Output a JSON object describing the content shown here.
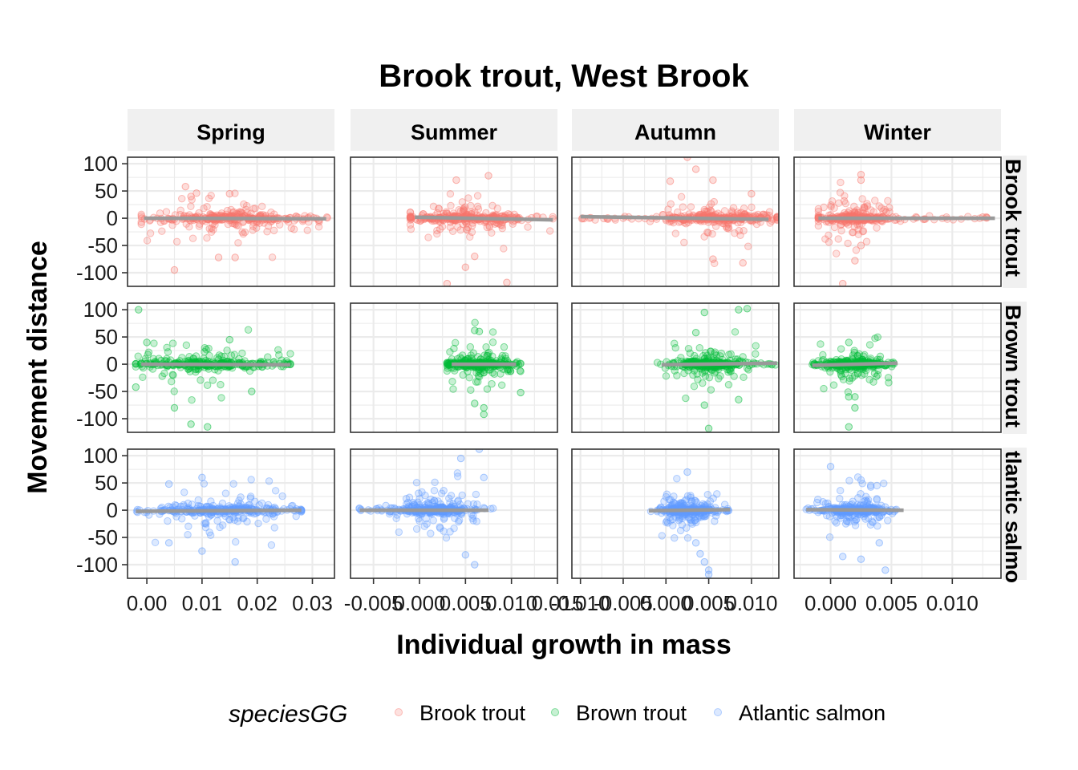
{
  "chart_data": {
    "type": "scatter",
    "title": "Brook trout, West Brook",
    "xlabel": "Individual growth in mass",
    "ylabel": "Movement distance",
    "legend": {
      "title": "speciesGG",
      "position": "bottom",
      "entries": [
        {
          "name": "Brook trout",
          "color": "#F8766D"
        },
        {
          "name": "Brown trout",
          "color": "#00BA38"
        },
        {
          "name": "Atlantic salmon",
          "color": "#619CFF"
        }
      ]
    },
    "facet_columns": [
      "Spring",
      "Summer",
      "Autumn",
      "Winter"
    ],
    "facet_rows": [
      "Brook trout",
      "Brown trout",
      "Atlantic salmon"
    ],
    "facet_row_strip_labels": [
      "Brook trout",
      "Brown trout",
      "tlantic salmo"
    ],
    "ylim": [
      -125,
      112
    ],
    "y_ticks": [
      100,
      50,
      0,
      -50,
      -100
    ],
    "y_tick_labels": [
      "100",
      "50",
      "0",
      "-50",
      "-100"
    ],
    "grid": true,
    "panels_columns": [
      {
        "season": "Spring",
        "xlim": [
          -0.0035,
          0.034
        ],
        "x_ticks": [
          0.0,
          0.01,
          0.02,
          0.03
        ],
        "x_tick_labels": [
          "0.00",
          "0.01",
          "0.02",
          "0.03"
        ],
        "trend_lines": [
          {
            "x": [
              -0.0005,
              0.0325
            ],
            "y": [
              0,
              -1
            ]
          },
          {
            "x": [
              -0.001,
              0.026
            ],
            "y": [
              0,
              -1
            ]
          },
          {
            "x": [
              -0.002,
              0.028
            ],
            "y": [
              -2,
              0
            ]
          }
        ],
        "x_range": [
          [
            -0.001,
            0.033
          ],
          [
            -0.002,
            0.026
          ],
          [
            -0.002,
            0.028
          ]
        ],
        "x_center": [
          0.014,
          0.011,
          0.014
        ],
        "x_spread": [
          0.0065,
          0.0065,
          0.0065
        ]
      },
      {
        "season": "Summer",
        "xlim": [
          -0.0075,
          0.015
        ],
        "x_ticks": [
          -0.005,
          0.0,
          0.005,
          0.01,
          0.015
        ],
        "x_tick_labels": [
          "-0.005",
          "0.000",
          "0.005",
          "0.010",
          "0.015"
        ],
        "trend_lines": [
          {
            "x": [
              -0.0005,
              0.0145
            ],
            "y": [
              2,
              -3
            ]
          },
          {
            "x": [
              0.0035,
              0.0105
            ],
            "y": [
              0,
              0
            ]
          },
          {
            "x": [
              -0.0065,
              0.0075
            ],
            "y": [
              0,
              0
            ]
          }
        ],
        "x_range": [
          [
            -0.001,
            0.0145
          ],
          [
            0.003,
            0.011
          ],
          [
            -0.007,
            0.008
          ]
        ],
        "x_center": [
          0.0045,
          0.0065,
          0.0015
        ],
        "x_spread": [
          0.0035,
          0.0018,
          0.0022
        ]
      },
      {
        "season": "Autumn",
        "xlim": [
          -0.011,
          0.0132
        ],
        "x_ticks": [
          -0.01,
          -0.005,
          0.0,
          0.005,
          0.01
        ],
        "x_tick_labels": [
          "-0.010",
          "-0.005",
          "0.000",
          "0.005",
          "0.010"
        ],
        "trend_lines": [
          {
            "x": [
              -0.01,
              0.012
            ],
            "y": [
              3,
              -2
            ]
          },
          {
            "x": [
              -0.0005,
              0.013
            ],
            "y": [
              -1,
              2
            ]
          },
          {
            "x": [
              -0.002,
              0.0075
            ],
            "y": [
              -1,
              1
            ]
          }
        ],
        "x_range": [
          [
            -0.01,
            0.013
          ],
          [
            -0.001,
            0.013
          ],
          [
            -0.002,
            0.0075
          ]
        ],
        "x_center": [
          0.006,
          0.005,
          0.0025
        ],
        "x_spread": [
          0.0035,
          0.0022,
          0.0015
        ]
      },
      {
        "season": "Winter",
        "xlim": [
          -0.003,
          0.014
        ],
        "x_ticks": [
          0.0,
          0.005,
          0.01
        ],
        "x_tick_labels": [
          "0.000",
          "0.005",
          "0.010"
        ],
        "trend_lines": [
          {
            "x": [
              -0.001,
              0.0135
            ],
            "y": [
              0,
              0
            ]
          },
          {
            "x": [
              -0.0015,
              0.0055
            ],
            "y": [
              -2,
              2
            ]
          },
          {
            "x": [
              -0.002,
              0.006
            ],
            "y": [
              1,
              0
            ]
          }
        ],
        "x_range": [
          [
            -0.001,
            0.0135
          ],
          [
            -0.0015,
            0.0055
          ],
          [
            -0.002,
            0.006
          ]
        ],
        "x_center": [
          0.002,
          0.002,
          0.002
        ],
        "x_spread": [
          0.0015,
          0.0013,
          0.0013
        ]
      }
    ],
    "outliers": [
      {
        "row": 0,
        "col": 0,
        "points": [
          [
            0.007,
            58
          ],
          [
            0.008,
            40
          ],
          [
            0.013,
            -72
          ],
          [
            0.005,
            -95
          ],
          [
            0.016,
            -72
          ],
          [
            0.009,
            46
          ],
          [
            0.015,
            45
          ]
        ]
      },
      {
        "row": 0,
        "col": 1,
        "points": [
          [
            0.004,
            70
          ],
          [
            0.0075,
            78
          ],
          [
            0.003,
            -120
          ],
          [
            0.0095,
            -118
          ],
          [
            0.006,
            -70
          ],
          [
            0.005,
            -90
          ]
        ]
      },
      {
        "row": 0,
        "col": 2,
        "points": [
          [
            0.0025,
            112
          ],
          [
            0.0035,
            90
          ],
          [
            0.0005,
            68
          ],
          [
            0.0055,
            70
          ],
          [
            0.0055,
            -75
          ],
          [
            0.009,
            -82
          ],
          [
            0.01,
            45
          ]
        ]
      },
      {
        "row": 0,
        "col": 3,
        "points": [
          [
            0.0025,
            80
          ],
          [
            0.0025,
            70
          ],
          [
            0.001,
            -120
          ],
          [
            0.002,
            -78
          ],
          [
            0.0025,
            -50
          ],
          [
            0.0125,
            2
          ]
        ]
      },
      {
        "row": 1,
        "col": 0,
        "points": [
          [
            -0.0015,
            100
          ],
          [
            0.0,
            40
          ],
          [
            -0.002,
            -42
          ],
          [
            0.008,
            -110
          ],
          [
            0.011,
            -115
          ],
          [
            0.015,
            45
          ],
          [
            0.019,
            -50
          ],
          [
            0.005,
            -80
          ]
        ]
      },
      {
        "row": 1,
        "col": 1,
        "points": [
          [
            0.0065,
            60
          ],
          [
            0.007,
            -80
          ],
          [
            0.007,
            -92
          ],
          [
            0.006,
            -72
          ],
          [
            0.011,
            -52
          ],
          [
            0.006,
            62
          ]
        ]
      },
      {
        "row": 1,
        "col": 2,
        "points": [
          [
            0.0045,
            95
          ],
          [
            0.0085,
            100
          ],
          [
            0.0095,
            102
          ],
          [
            0.0035,
            58
          ],
          [
            0.0045,
            -75
          ],
          [
            0.005,
            -118
          ],
          [
            0.0085,
            -65
          ]
        ]
      },
      {
        "row": 1,
        "col": 3,
        "points": [
          [
            0.0015,
            40
          ],
          [
            0.002,
            -60
          ],
          [
            0.0015,
            -115
          ],
          [
            0.002,
            -80
          ],
          [
            0.0015,
            -60
          ]
        ]
      },
      {
        "row": 2,
        "col": 0,
        "points": [
          [
            0.01,
            60
          ],
          [
            0.004,
            48
          ],
          [
            0.016,
            -95
          ],
          [
            0.01,
            -75
          ],
          [
            0.004,
            -60
          ]
        ]
      },
      {
        "row": 2,
        "col": 1,
        "points": [
          [
            0.0065,
            112
          ],
          [
            0.0045,
            95
          ],
          [
            0.006,
            -100
          ],
          [
            0.005,
            -82
          ],
          [
            0.007,
            60
          ]
        ]
      },
      {
        "row": 2,
        "col": 2,
        "points": [
          [
            0.0025,
            70
          ],
          [
            0.004,
            -80
          ],
          [
            0.0045,
            -95
          ],
          [
            0.005,
            -110
          ],
          [
            0.0035,
            -60
          ],
          [
            0.005,
            -118
          ]
        ]
      },
      {
        "row": 2,
        "col": 3,
        "points": [
          [
            0.0,
            80
          ],
          [
            0.001,
            -85
          ],
          [
            0.0025,
            -90
          ],
          [
            0.0045,
            -110
          ],
          [
            0.004,
            -60
          ]
        ]
      }
    ]
  }
}
